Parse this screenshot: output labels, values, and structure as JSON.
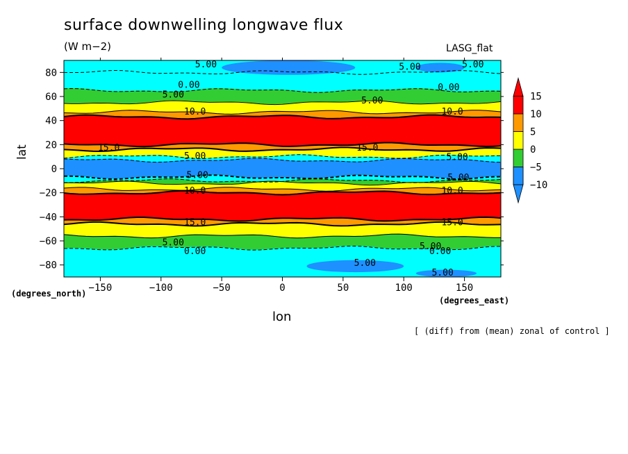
{
  "chart_data": {
    "type": "heatmap",
    "title": "surface downwelling longwave flux",
    "units_label": "(W m−2)",
    "model_label": "LASG_flat",
    "xlabel": "lon",
    "ylabel": "lat",
    "x_units": "(degrees_east)",
    "y_units": "(degrees_north)",
    "footnote": "[ (diff) from (mean) zonal of control ]",
    "xlim": [
      -180,
      180
    ],
    "ylim": [
      -90,
      90
    ],
    "x_ticks": [
      -150,
      -100,
      -50,
      0,
      50,
      100,
      150
    ],
    "y_ticks": [
      -80,
      -60,
      -40,
      -20,
      0,
      20,
      40,
      60,
      80
    ],
    "x_tick_labels": [
      "−150",
      "−100",
      "−50",
      "0",
      "50",
      "100",
      "150"
    ],
    "y_tick_labels": [
      "−80",
      "−60",
      "−40",
      "−20",
      "0",
      "20",
      "40",
      "60",
      "80"
    ],
    "colorbar": {
      "levels": [
        -10,
        -5,
        0,
        5,
        10,
        15
      ],
      "labels": [
        "−10",
        "−5",
        "0",
        "5",
        "10",
        "15"
      ],
      "colors": [
        "#1e90ff",
        "#00ffff",
        "#32cd32",
        "#ffff00",
        "#ff9900",
        "#ff0000"
      ],
      "extend": "both"
    },
    "zonal_bands": [
      {
        "lat_min": 80,
        "lat_max": 90,
        "value": -5,
        "color": "#00ffff"
      },
      {
        "lat_min": 65,
        "lat_max": 80,
        "value": -2,
        "color": "#00ffff"
      },
      {
        "lat_min": 55,
        "lat_max": 65,
        "value": 3,
        "color": "#32cd32"
      },
      {
        "lat_min": 47,
        "lat_max": 55,
        "value": 8,
        "color": "#ffff00"
      },
      {
        "lat_min": 43,
        "lat_max": 47,
        "value": 12,
        "color": "#ff9900"
      },
      {
        "lat_min": 20,
        "lat_max": 43,
        "value": 16,
        "color": "#ff0000"
      },
      {
        "lat_min": 16,
        "lat_max": 20,
        "value": 12,
        "color": "#ff9900"
      },
      {
        "lat_min": 10,
        "lat_max": 16,
        "value": 8,
        "color": "#ffff00"
      },
      {
        "lat_min": 7,
        "lat_max": 10,
        "value": -3,
        "color": "#00ffff"
      },
      {
        "lat_min": -7,
        "lat_max": 7,
        "value": -11,
        "color": "#1e90ff"
      },
      {
        "lat_min": -10,
        "lat_max": -7,
        "value": -3,
        "color": "#00ffff"
      },
      {
        "lat_min": -12,
        "lat_max": -10,
        "value": 3,
        "color": "#32cd32"
      },
      {
        "lat_min": -17,
        "lat_max": -12,
        "value": 8,
        "color": "#ffff00"
      },
      {
        "lat_min": -20,
        "lat_max": -17,
        "value": 12,
        "color": "#ff9900"
      },
      {
        "lat_min": -42,
        "lat_max": -20,
        "value": 16,
        "color": "#ff0000"
      },
      {
        "lat_min": -46,
        "lat_max": -42,
        "value": 12,
        "color": "#ff9900"
      },
      {
        "lat_min": -56,
        "lat_max": -46,
        "value": 8,
        "color": "#ffff00"
      },
      {
        "lat_min": -66,
        "lat_max": -56,
        "value": 3,
        "color": "#32cd32"
      },
      {
        "lat_min": -90,
        "lat_max": -66,
        "value": -2,
        "color": "#00ffff"
      }
    ],
    "patches": [
      {
        "lon_min": -50,
        "lon_max": 60,
        "lat_min": 78,
        "lat_max": 90,
        "value": -7,
        "color": "#1e90ff"
      },
      {
        "lon_min": 110,
        "lon_max": 150,
        "lat_min": 80,
        "lat_max": 88,
        "value": -7,
        "color": "#1e90ff"
      },
      {
        "lon_min": 20,
        "lon_max": 100,
        "lat_min": -86,
        "lat_max": -76,
        "value": -7,
        "color": "#1e90ff"
      },
      {
        "lon_min": 110,
        "lon_max": 160,
        "lat_min": -90,
        "lat_max": -84,
        "value": -7,
        "color": "#1e90ff"
      }
    ],
    "contour_labels": [
      {
        "text": "5.00",
        "lon": -63,
        "lat": 87
      },
      {
        "text": "5.00",
        "lon": 105,
        "lat": 85
      },
      {
        "text": "5.00",
        "lon": 157,
        "lat": 87
      },
      {
        "text": "0.00",
        "lon": -77,
        "lat": 70
      },
      {
        "text": "0.00",
        "lon": 137,
        "lat": 68
      },
      {
        "text": "5.00",
        "lon": -90,
        "lat": 62
      },
      {
        "text": "5.00",
        "lon": 74,
        "lat": 57
      },
      {
        "text": "10.0",
        "lon": -72,
        "lat": 48
      },
      {
        "text": "10.0",
        "lon": 140,
        "lat": 48
      },
      {
        "text": "15.0",
        "lon": -143,
        "lat": 18
      },
      {
        "text": "15.0",
        "lon": 70,
        "lat": 18
      },
      {
        "text": "5.00",
        "lon": -72,
        "lat": 11
      },
      {
        "text": "5.00",
        "lon": 144,
        "lat": 10
      },
      {
        "text": "5.00",
        "lon": -70,
        "lat": -5
      },
      {
        "text": "5.00",
        "lon": 145,
        "lat": -7
      },
      {
        "text": "10.0",
        "lon": -72,
        "lat": -18
      },
      {
        "text": "10.0",
        "lon": 140,
        "lat": -18
      },
      {
        "text": "15.0",
        "lon": -72,
        "lat": -44
      },
      {
        "text": "15.0",
        "lon": 140,
        "lat": -44
      },
      {
        "text": "5.00",
        "lon": -90,
        "lat": -61
      },
      {
        "text": "5.00",
        "lon": 122,
        "lat": -64
      },
      {
        "text": "0.00",
        "lon": -72,
        "lat": -68
      },
      {
        "text": "0.00",
        "lon": 130,
        "lat": -68
      },
      {
        "text": "5.00",
        "lon": 68,
        "lat": -78
      },
      {
        "text": "5.00",
        "lon": 132,
        "lat": -86
      }
    ]
  }
}
